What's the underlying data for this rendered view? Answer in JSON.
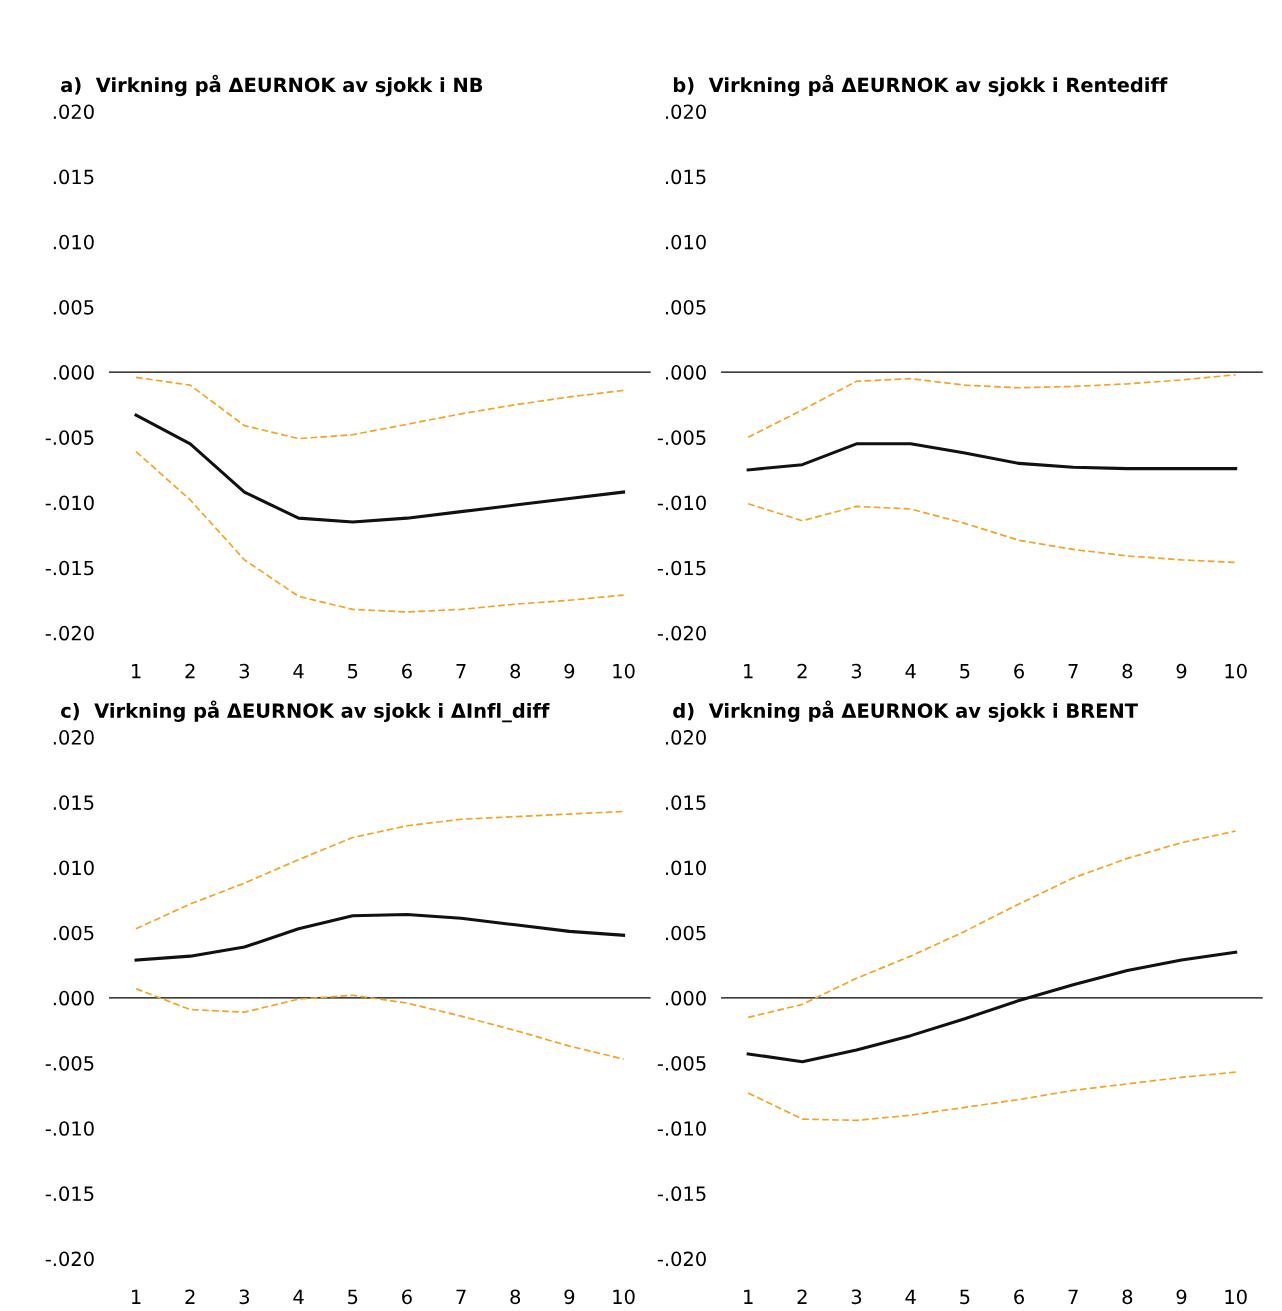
{
  "chart_data": [
    {
      "type": "line",
      "title": "a)  Virkning på ΔEURNOK av sjokk i NB",
      "x": [
        1,
        2,
        3,
        4,
        5,
        6,
        7,
        8,
        9,
        10
      ],
      "xlim": [
        0.5,
        10.5
      ],
      "xticks": [
        1,
        2,
        3,
        4,
        5,
        6,
        7,
        8,
        9,
        10
      ],
      "ylim": [
        -0.02,
        0.02
      ],
      "yticks": [
        {
          "value": 0.02,
          "label": ".020"
        },
        {
          "value": 0.015,
          "label": ".015"
        },
        {
          "value": 0.01,
          "label": ".010"
        },
        {
          "value": 0.005,
          "label": ".005"
        },
        {
          "value": 0,
          "label": ".000"
        },
        {
          "value": -0.005,
          "label": "-.005"
        },
        {
          "value": -0.01,
          "label": "-.010"
        },
        {
          "value": -0.015,
          "label": "-.015"
        },
        {
          "value": -0.02,
          "label": "-.020"
        }
      ],
      "ref_lines": [
        {
          "axis": "y",
          "value": 0,
          "color": "#000000"
        }
      ],
      "grid": false,
      "legend": false,
      "series": [
        {
          "color": "#f5a31e",
          "line_style": "dashed",
          "values": [
            -0.0004,
            -0.001,
            -0.0041,
            -0.0051,
            -0.0048,
            -0.004,
            -0.0032,
            -0.0025,
            -0.0019,
            -0.0014
          ]
        },
        {
          "color": "#f5a31e",
          "line_style": "dashed",
          "values": [
            -0.0061,
            -0.0098,
            -0.0144,
            -0.0172,
            -0.0182,
            -0.0184,
            -0.0182,
            -0.0178,
            -0.0175,
            -0.0171
          ]
        },
        {
          "color": "#111111",
          "line_style": "solid",
          "values": [
            -0.0033,
            -0.0055,
            -0.0092,
            -0.0112,
            -0.0115,
            -0.0112,
            -0.0107,
            -0.0102,
            -0.0097,
            -0.0092
          ]
        }
      ]
    },
    {
      "type": "line",
      "title": "b)  Virkning på ΔEURNOK av sjokk i Rentediff",
      "x": [
        1,
        2,
        3,
        4,
        5,
        6,
        7,
        8,
        9,
        10
      ],
      "xlim": [
        0.5,
        10.5
      ],
      "xticks": [
        1,
        2,
        3,
        4,
        5,
        6,
        7,
        8,
        9,
        10
      ],
      "ylim": [
        -0.02,
        0.02
      ],
      "yticks": [
        {
          "value": 0.02,
          "label": ".020"
        },
        {
          "value": 0.015,
          "label": ".015"
        },
        {
          "value": 0.01,
          "label": ".010"
        },
        {
          "value": 0.005,
          "label": ".005"
        },
        {
          "value": 0,
          "label": ".000"
        },
        {
          "value": -0.005,
          "label": "-.005"
        },
        {
          "value": -0.01,
          "label": "-.010"
        },
        {
          "value": -0.015,
          "label": "-.015"
        },
        {
          "value": -0.02,
          "label": "-.020"
        }
      ],
      "ref_lines": [
        {
          "axis": "y",
          "value": 0,
          "color": "#000000"
        }
      ],
      "grid": false,
      "legend": false,
      "series": [
        {
          "color": "#f5a31e",
          "line_style": "dashed",
          "values": [
            -0.005,
            -0.0029,
            -0.0007,
            -0.0005,
            -0.001,
            -0.0012,
            -0.0011,
            -0.0009,
            -0.0006,
            -0.0002
          ]
        },
        {
          "color": "#f5a31e",
          "line_style": "dashed",
          "values": [
            -0.0101,
            -0.0114,
            -0.0103,
            -0.0105,
            -0.0116,
            -0.0129,
            -0.0136,
            -0.0141,
            -0.0144,
            -0.0146
          ]
        },
        {
          "color": "#111111",
          "line_style": "solid",
          "values": [
            -0.0075,
            -0.0071,
            -0.0055,
            -0.0055,
            -0.0062,
            -0.007,
            -0.0073,
            -0.0074,
            -0.0074,
            -0.0074
          ]
        }
      ]
    },
    {
      "type": "line",
      "title": "c)  Virkning på ΔEURNOK av sjokk i ΔInfl_diff",
      "x": [
        1,
        2,
        3,
        4,
        5,
        6,
        7,
        8,
        9,
        10
      ],
      "xlim": [
        0.5,
        10.5
      ],
      "xticks": [
        1,
        2,
        3,
        4,
        5,
        6,
        7,
        8,
        9,
        10
      ],
      "ylim": [
        -0.02,
        0.02
      ],
      "yticks": [
        {
          "value": 0.02,
          "label": ".020"
        },
        {
          "value": 0.015,
          "label": ".015"
        },
        {
          "value": 0.01,
          "label": ".010"
        },
        {
          "value": 0.005,
          "label": ".005"
        },
        {
          "value": 0,
          "label": ".000"
        },
        {
          "value": -0.005,
          "label": "-.005"
        },
        {
          "value": -0.01,
          "label": "-.010"
        },
        {
          "value": -0.015,
          "label": "-.015"
        },
        {
          "value": -0.02,
          "label": "-.020"
        }
      ],
      "ref_lines": [
        {
          "axis": "y",
          "value": 0,
          "color": "#000000"
        }
      ],
      "grid": false,
      "legend": false,
      "series": [
        {
          "color": "#f5a31e",
          "line_style": "dashed",
          "values": [
            0.0053,
            0.0072,
            0.0088,
            0.0106,
            0.0123,
            0.0132,
            0.0137,
            0.0139,
            0.0141,
            0.0143
          ]
        },
        {
          "color": "#f5a31e",
          "line_style": "dashed",
          "values": [
            0.0007,
            -0.0009,
            -0.0011,
            -0.0001,
            0.0002,
            -0.0004,
            -0.0014,
            -0.0025,
            -0.0037,
            -0.0047
          ]
        },
        {
          "color": "#111111",
          "line_style": "solid",
          "values": [
            0.0029,
            0.0032,
            0.0039,
            0.0053,
            0.0063,
            0.0064,
            0.0061,
            0.0056,
            0.0051,
            0.0048
          ]
        }
      ]
    },
    {
      "type": "line",
      "title": "d)  Virkning på ΔEURNOK av sjokk i BRENT",
      "x": [
        1,
        2,
        3,
        4,
        5,
        6,
        7,
        8,
        9,
        10
      ],
      "xlim": [
        0.5,
        10.5
      ],
      "xticks": [
        1,
        2,
        3,
        4,
        5,
        6,
        7,
        8,
        9,
        10
      ],
      "ylim": [
        -0.02,
        0.02
      ],
      "yticks": [
        {
          "value": 0.02,
          "label": ".020"
        },
        {
          "value": 0.015,
          "label": ".015"
        },
        {
          "value": 0.01,
          "label": ".010"
        },
        {
          "value": 0.005,
          "label": ".005"
        },
        {
          "value": 0,
          "label": ".000"
        },
        {
          "value": -0.005,
          "label": "-.005"
        },
        {
          "value": -0.01,
          "label": "-.010"
        },
        {
          "value": -0.015,
          "label": "-.015"
        },
        {
          "value": -0.02,
          "label": "-.020"
        }
      ],
      "ref_lines": [
        {
          "axis": "y",
          "value": 0,
          "color": "#000000"
        }
      ],
      "grid": false,
      "legend": false,
      "series": [
        {
          "color": "#f5a31e",
          "line_style": "dashed",
          "values": [
            -0.0015,
            -0.0005,
            0.0015,
            0.0032,
            0.0051,
            0.0072,
            0.0092,
            0.0107,
            0.0119,
            0.0128
          ]
        },
        {
          "color": "#f5a31e",
          "line_style": "dashed",
          "values": [
            -0.0073,
            -0.0093,
            -0.0094,
            -0.009,
            -0.0084,
            -0.0078,
            -0.0071,
            -0.0066,
            -0.0061,
            -0.0057
          ]
        },
        {
          "color": "#111111",
          "line_style": "solid",
          "values": [
            -0.0043,
            -0.0049,
            -0.004,
            -0.0029,
            -0.0016,
            -0.0002,
            0.001,
            0.0021,
            0.0029,
            0.0035
          ]
        }
      ]
    }
  ]
}
